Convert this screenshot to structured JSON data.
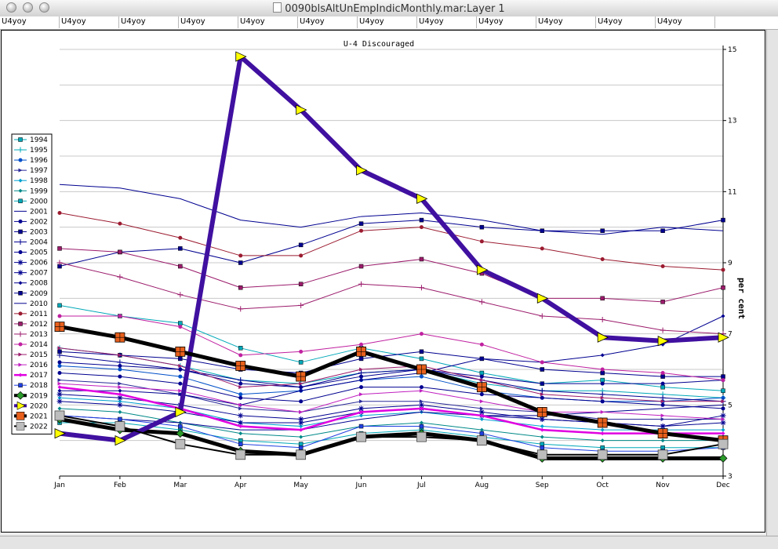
{
  "window": {
    "title": "0090blsAltUnEmpIndicMonthly.mar:Layer 1"
  },
  "fields": [
    "U4yoy",
    "U4yoy",
    "U4yoy",
    "U4yoy",
    "U4yoy",
    "U4yoy",
    "U4yoy",
    "U4yoy",
    "U4yoy",
    "U4yoy",
    "U4yoy",
    "U4yoy"
  ],
  "chart_data": {
    "type": "line",
    "title": "U-4 Discouraged",
    "ylabel": "per cent",
    "xlabel": "",
    "categories": [
      "Jan",
      "Feb",
      "Mar",
      "Apr",
      "May",
      "Jun",
      "Jul",
      "Aug",
      "Sep",
      "Oct",
      "Nov",
      "Dec"
    ],
    "yticks": [
      3,
      5,
      7,
      9,
      11,
      13,
      15
    ],
    "ylim": [
      3,
      15
    ],
    "grid": true,
    "legend_position": "left",
    "series": [
      {
        "name": "1994",
        "color": "#00a8b8",
        "marker": "square",
        "values": [
          7.8,
          7.5,
          7.3,
          6.6,
          6.2,
          6.6,
          6.3,
          5.9,
          5.6,
          5.7,
          5.5,
          5.4
        ]
      },
      {
        "name": "1995",
        "color": "#00a8b8",
        "marker": "plus",
        "values": [
          6.6,
          6.4,
          6.1,
          5.7,
          5.6,
          5.9,
          6.0,
          5.6,
          5.4,
          5.4,
          5.3,
          5.2
        ]
      },
      {
        "name": "1996",
        "color": "#0050c8",
        "marker": "circle",
        "values": [
          6.1,
          6.0,
          5.8,
          5.3,
          5.4,
          5.7,
          5.8,
          5.4,
          5.2,
          5.1,
          5.1,
          5.2
        ]
      },
      {
        "name": "1997",
        "color": "#2a2a9a",
        "marker": "tri-right",
        "values": [
          5.7,
          5.6,
          5.3,
          4.9,
          4.8,
          5.1,
          5.1,
          4.9,
          4.8,
          4.6,
          4.6,
          4.6
        ]
      },
      {
        "name": "1998",
        "color": "#00a0d0",
        "marker": "diamond",
        "values": [
          5.2,
          5.1,
          4.9,
          4.5,
          4.4,
          4.7,
          4.8,
          4.6,
          4.4,
          4.3,
          4.3,
          4.3
        ]
      },
      {
        "name": "1999",
        "color": "#008888",
        "marker": "diamond",
        "values": [
          4.9,
          4.8,
          4.5,
          4.2,
          4.1,
          4.4,
          4.5,
          4.3,
          4.1,
          4.0,
          4.0,
          4.0
        ]
      },
      {
        "name": "2000",
        "color": "#00a8b8",
        "marker": "square",
        "values": [
          4.5,
          4.5,
          4.3,
          4.0,
          3.9,
          4.2,
          4.3,
          4.1,
          3.9,
          3.8,
          3.8,
          3.8
        ]
      },
      {
        "name": "2001",
        "color": "#000090",
        "marker": "none",
        "values": [
          4.7,
          4.6,
          4.5,
          4.3,
          4.3,
          4.6,
          4.8,
          4.7,
          4.7,
          4.8,
          4.9,
          5.0
        ]
      },
      {
        "name": "2002",
        "color": "#000090",
        "marker": "circle",
        "values": [
          6.2,
          6.1,
          6.0,
          5.6,
          5.5,
          5.8,
          6.0,
          5.8,
          5.6,
          5.6,
          5.6,
          5.7
        ]
      },
      {
        "name": "2003",
        "color": "#000090",
        "marker": "square",
        "values": [
          6.5,
          6.4,
          6.3,
          6.0,
          5.9,
          6.3,
          6.5,
          6.3,
          6.0,
          5.9,
          5.8,
          5.8
        ]
      },
      {
        "name": "2004",
        "color": "#000090",
        "marker": "plus",
        "values": [
          6.4,
          6.2,
          6.0,
          5.7,
          5.5,
          5.9,
          6.0,
          5.7,
          5.4,
          5.3,
          5.2,
          5.1
        ]
      },
      {
        "name": "2005",
        "color": "#000090",
        "marker": "circle",
        "values": [
          5.9,
          5.8,
          5.6,
          5.2,
          5.1,
          5.5,
          5.5,
          5.3,
          5.2,
          5.1,
          5.0,
          4.9
        ]
      },
      {
        "name": "2006",
        "color": "#000090",
        "marker": "asterisk",
        "values": [
          5.3,
          5.2,
          5.0,
          4.7,
          4.6,
          4.9,
          5.0,
          4.8,
          4.6,
          4.5,
          4.4,
          4.5
        ]
      },
      {
        "name": "2007",
        "color": "#000090",
        "marker": "asterisk",
        "values": [
          5.1,
          5.0,
          4.8,
          4.5,
          4.5,
          4.8,
          4.9,
          4.7,
          4.6,
          4.5,
          4.4,
          4.7
        ]
      },
      {
        "name": "2008",
        "color": "#000090",
        "marker": "diamond",
        "values": [
          5.4,
          5.4,
          5.3,
          5.0,
          5.4,
          5.7,
          5.9,
          6.3,
          6.2,
          6.4,
          6.7,
          7.5
        ]
      },
      {
        "name": "2009",
        "color": "#000090",
        "marker": "square",
        "values": [
          8.9,
          9.3,
          9.4,
          9.0,
          9.5,
          10.1,
          10.2,
          10.0,
          9.9,
          9.9,
          9.9,
          10.2
        ]
      },
      {
        "name": "2010",
        "color": "#000090",
        "marker": "none",
        "values": [
          11.2,
          11.1,
          10.8,
          10.2,
          10.0,
          10.3,
          10.4,
          10.2,
          9.9,
          9.8,
          10.0,
          9.9
        ]
      },
      {
        "name": "2011",
        "color": "#9b1b30",
        "marker": "circle",
        "values": [
          10.4,
          10.1,
          9.7,
          9.2,
          9.2,
          9.9,
          10.0,
          9.6,
          9.4,
          9.1,
          8.9,
          8.8
        ]
      },
      {
        "name": "2012",
        "color": "#9b1b6b",
        "marker": "square",
        "values": [
          9.4,
          9.3,
          8.9,
          8.3,
          8.4,
          8.9,
          9.1,
          8.7,
          8.0,
          8.0,
          7.9,
          8.3
        ]
      },
      {
        "name": "2013",
        "color": "#9b1b6b",
        "marker": "plus",
        "values": [
          9.0,
          8.6,
          8.1,
          7.7,
          7.8,
          8.4,
          8.3,
          7.9,
          7.5,
          7.4,
          7.1,
          7.0
        ]
      },
      {
        "name": "2014",
        "color": "#c020a0",
        "marker": "circle",
        "values": [
          7.5,
          7.5,
          7.2,
          6.4,
          6.5,
          6.7,
          7.0,
          6.7,
          6.2,
          6.0,
          5.9,
          5.7
        ]
      },
      {
        "name": "2015",
        "color": "#9b1b6b",
        "marker": "tri-right",
        "values": [
          6.6,
          6.4,
          6.1,
          5.5,
          5.6,
          6.0,
          6.1,
          5.7,
          5.3,
          5.2,
          5.1,
          5.1
        ]
      },
      {
        "name": "2016",
        "color": "#c020c0",
        "marker": "tri-right",
        "values": [
          5.6,
          5.5,
          5.4,
          5.0,
          4.8,
          5.3,
          5.4,
          5.1,
          4.8,
          4.8,
          4.7,
          4.6
        ]
      },
      {
        "name": "2017",
        "color": "#e000e0",
        "marker": "diamond",
        "values": [
          5.5,
          5.3,
          4.9,
          4.4,
          4.3,
          4.8,
          4.9,
          4.7,
          4.3,
          4.2,
          4.2,
          4.2
        ]
      },
      {
        "name": "2018",
        "color": "#2040e0",
        "marker": "square",
        "values": [
          4.7,
          4.6,
          4.4,
          3.9,
          3.8,
          4.4,
          4.4,
          4.2,
          3.8,
          3.7,
          3.7,
          3.8
        ]
      },
      {
        "name": "2019",
        "color": "#000000",
        "marker": "diamond-green",
        "values": [
          4.6,
          4.3,
          4.2,
          3.7,
          3.6,
          4.1,
          4.2,
          4.0,
          3.5,
          3.5,
          3.5,
          3.5
        ]
      },
      {
        "name": "2020",
        "color": "#4010a0",
        "marker": "tri-right-yellow",
        "values": [
          4.2,
          4.0,
          4.8,
          14.8,
          13.3,
          11.6,
          10.8,
          8.8,
          8.0,
          6.9,
          6.8,
          6.9
        ]
      },
      {
        "name": "2021",
        "color": "#000000",
        "marker": "square-orange",
        "values": [
          7.2,
          6.9,
          6.5,
          6.1,
          5.8,
          6.5,
          6.0,
          5.5,
          4.8,
          4.5,
          4.2,
          4.0
        ]
      },
      {
        "name": "2022",
        "color": "#000000",
        "marker": "square-gray",
        "values": [
          4.7,
          4.4,
          3.9,
          3.6,
          3.6,
          4.1,
          4.1,
          4.0,
          3.6,
          3.6,
          3.6,
          3.9
        ]
      }
    ]
  }
}
